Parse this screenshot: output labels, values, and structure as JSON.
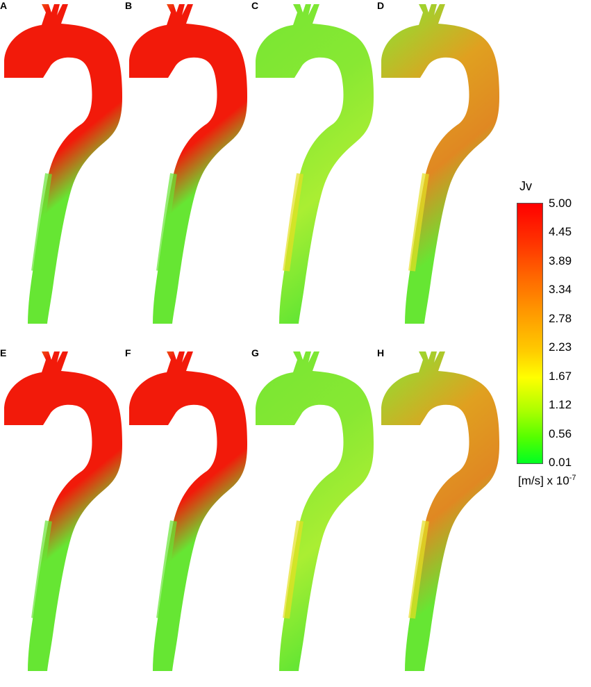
{
  "panels": [
    {
      "label": "A",
      "dominant": "#f21a0a",
      "accent": "#e6e033",
      "mix": "red"
    },
    {
      "label": "B",
      "dominant": "#f21a0a",
      "accent": "#e6e033",
      "mix": "red"
    },
    {
      "label": "C",
      "dominant": "#66e633",
      "accent": "#e6e022",
      "mix": "green"
    },
    {
      "label": "D",
      "dominant": "#88e633",
      "accent": "#e0a020",
      "mix": "mixed"
    },
    {
      "label": "E",
      "dominant": "#f21a0a",
      "accent": "#e6e033",
      "mix": "red"
    },
    {
      "label": "F",
      "dominant": "#f21a0a",
      "accent": "#e6e033",
      "mix": "red"
    },
    {
      "label": "G",
      "dominant": "#66e633",
      "accent": "#e6e022",
      "mix": "green"
    },
    {
      "label": "H",
      "dominant": "#88e633",
      "accent": "#e0a020",
      "mix": "mixed"
    }
  ],
  "colorbar": {
    "title": "Jv",
    "ticks": [
      "5.00",
      "4.45",
      "3.89",
      "3.34",
      "2.78",
      "2.23",
      "1.67",
      "1.12",
      "0.56",
      "0.01"
    ],
    "unit": "[m/s] x 10",
    "unit_exp": "-7"
  }
}
